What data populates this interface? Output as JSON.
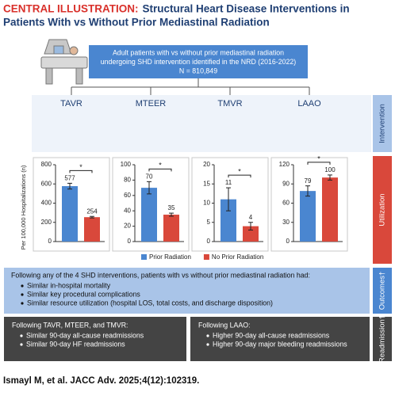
{
  "header": {
    "label": "CENTRAL ILLUSTRATION:",
    "title_lines": [
      "Structural Heart Disease Interventions in",
      "Patients With vs Without Prior Mediastinal Radiation"
    ]
  },
  "population": {
    "lines": [
      "Adult patients with vs without prior mediastinal radiation",
      "undergoing SHD intervention identified in the NRD (2016-2022)",
      "N = 810,849"
    ]
  },
  "sections": {
    "intervention": "Intervention",
    "utilization": "Utilization",
    "outcomes": "Outcomes†",
    "readmission": "Readmission†"
  },
  "y_label": "Per 100,000 Hospitalizations (n)",
  "legend": [
    {
      "name": "Prior Radiation",
      "color": "#4a86d0"
    },
    {
      "name": "No Prior Radiation",
      "color": "#d9483b"
    }
  ],
  "chart_data": [
    {
      "type": "bar",
      "title": "TAVR",
      "values": [
        577,
        254
      ],
      "errors": [
        30,
        8
      ],
      "ylim": [
        0,
        800
      ],
      "yticks": [
        0,
        200,
        400,
        600,
        800
      ],
      "annotation": "*"
    },
    {
      "type": "bar",
      "title": "MTEER",
      "values": [
        70,
        35
      ],
      "errors": [
        8,
        2
      ],
      "ylim": [
        0,
        100
      ],
      "yticks": [
        0,
        20,
        40,
        60,
        80,
        100
      ],
      "annotation": "*"
    },
    {
      "type": "bar",
      "title": "TMVR",
      "values": [
        11,
        4
      ],
      "errors": [
        3,
        1
      ],
      "ylim": [
        0,
        20
      ],
      "yticks": [
        0,
        5,
        10,
        15,
        20
      ],
      "annotation": "*"
    },
    {
      "type": "bar",
      "title": "LAAO",
      "values": [
        79,
        100
      ],
      "errors": [
        8,
        4
      ],
      "ylim": [
        0,
        120
      ],
      "yticks": [
        0,
        30,
        60,
        90,
        120
      ],
      "annotation": "*"
    }
  ],
  "outcomes": {
    "intro": "Following any of the 4 SHD interventions, patients with vs without prior mediastinal radiation had:",
    "bullets": [
      "Similar in-hospital mortality",
      "Similar key procedural complications",
      "Similar resource utilization (hospital LOS, total costs, and discharge disposition)"
    ]
  },
  "readmission": [
    {
      "heading": "Following TAVR, MTEER, and TMVR:",
      "bullets": [
        "Similar 90-day all-cause readmissions",
        "Similar 90-day HF readmissions"
      ]
    },
    {
      "heading": "Following LAAO:",
      "bullets": [
        "Higher 90-day all-cause readmissions",
        "Higher 90-day major bleeding readmissions"
      ]
    }
  ],
  "citation": "Ismayl M, et al. JACC Adv. 2025;4(12):102319."
}
